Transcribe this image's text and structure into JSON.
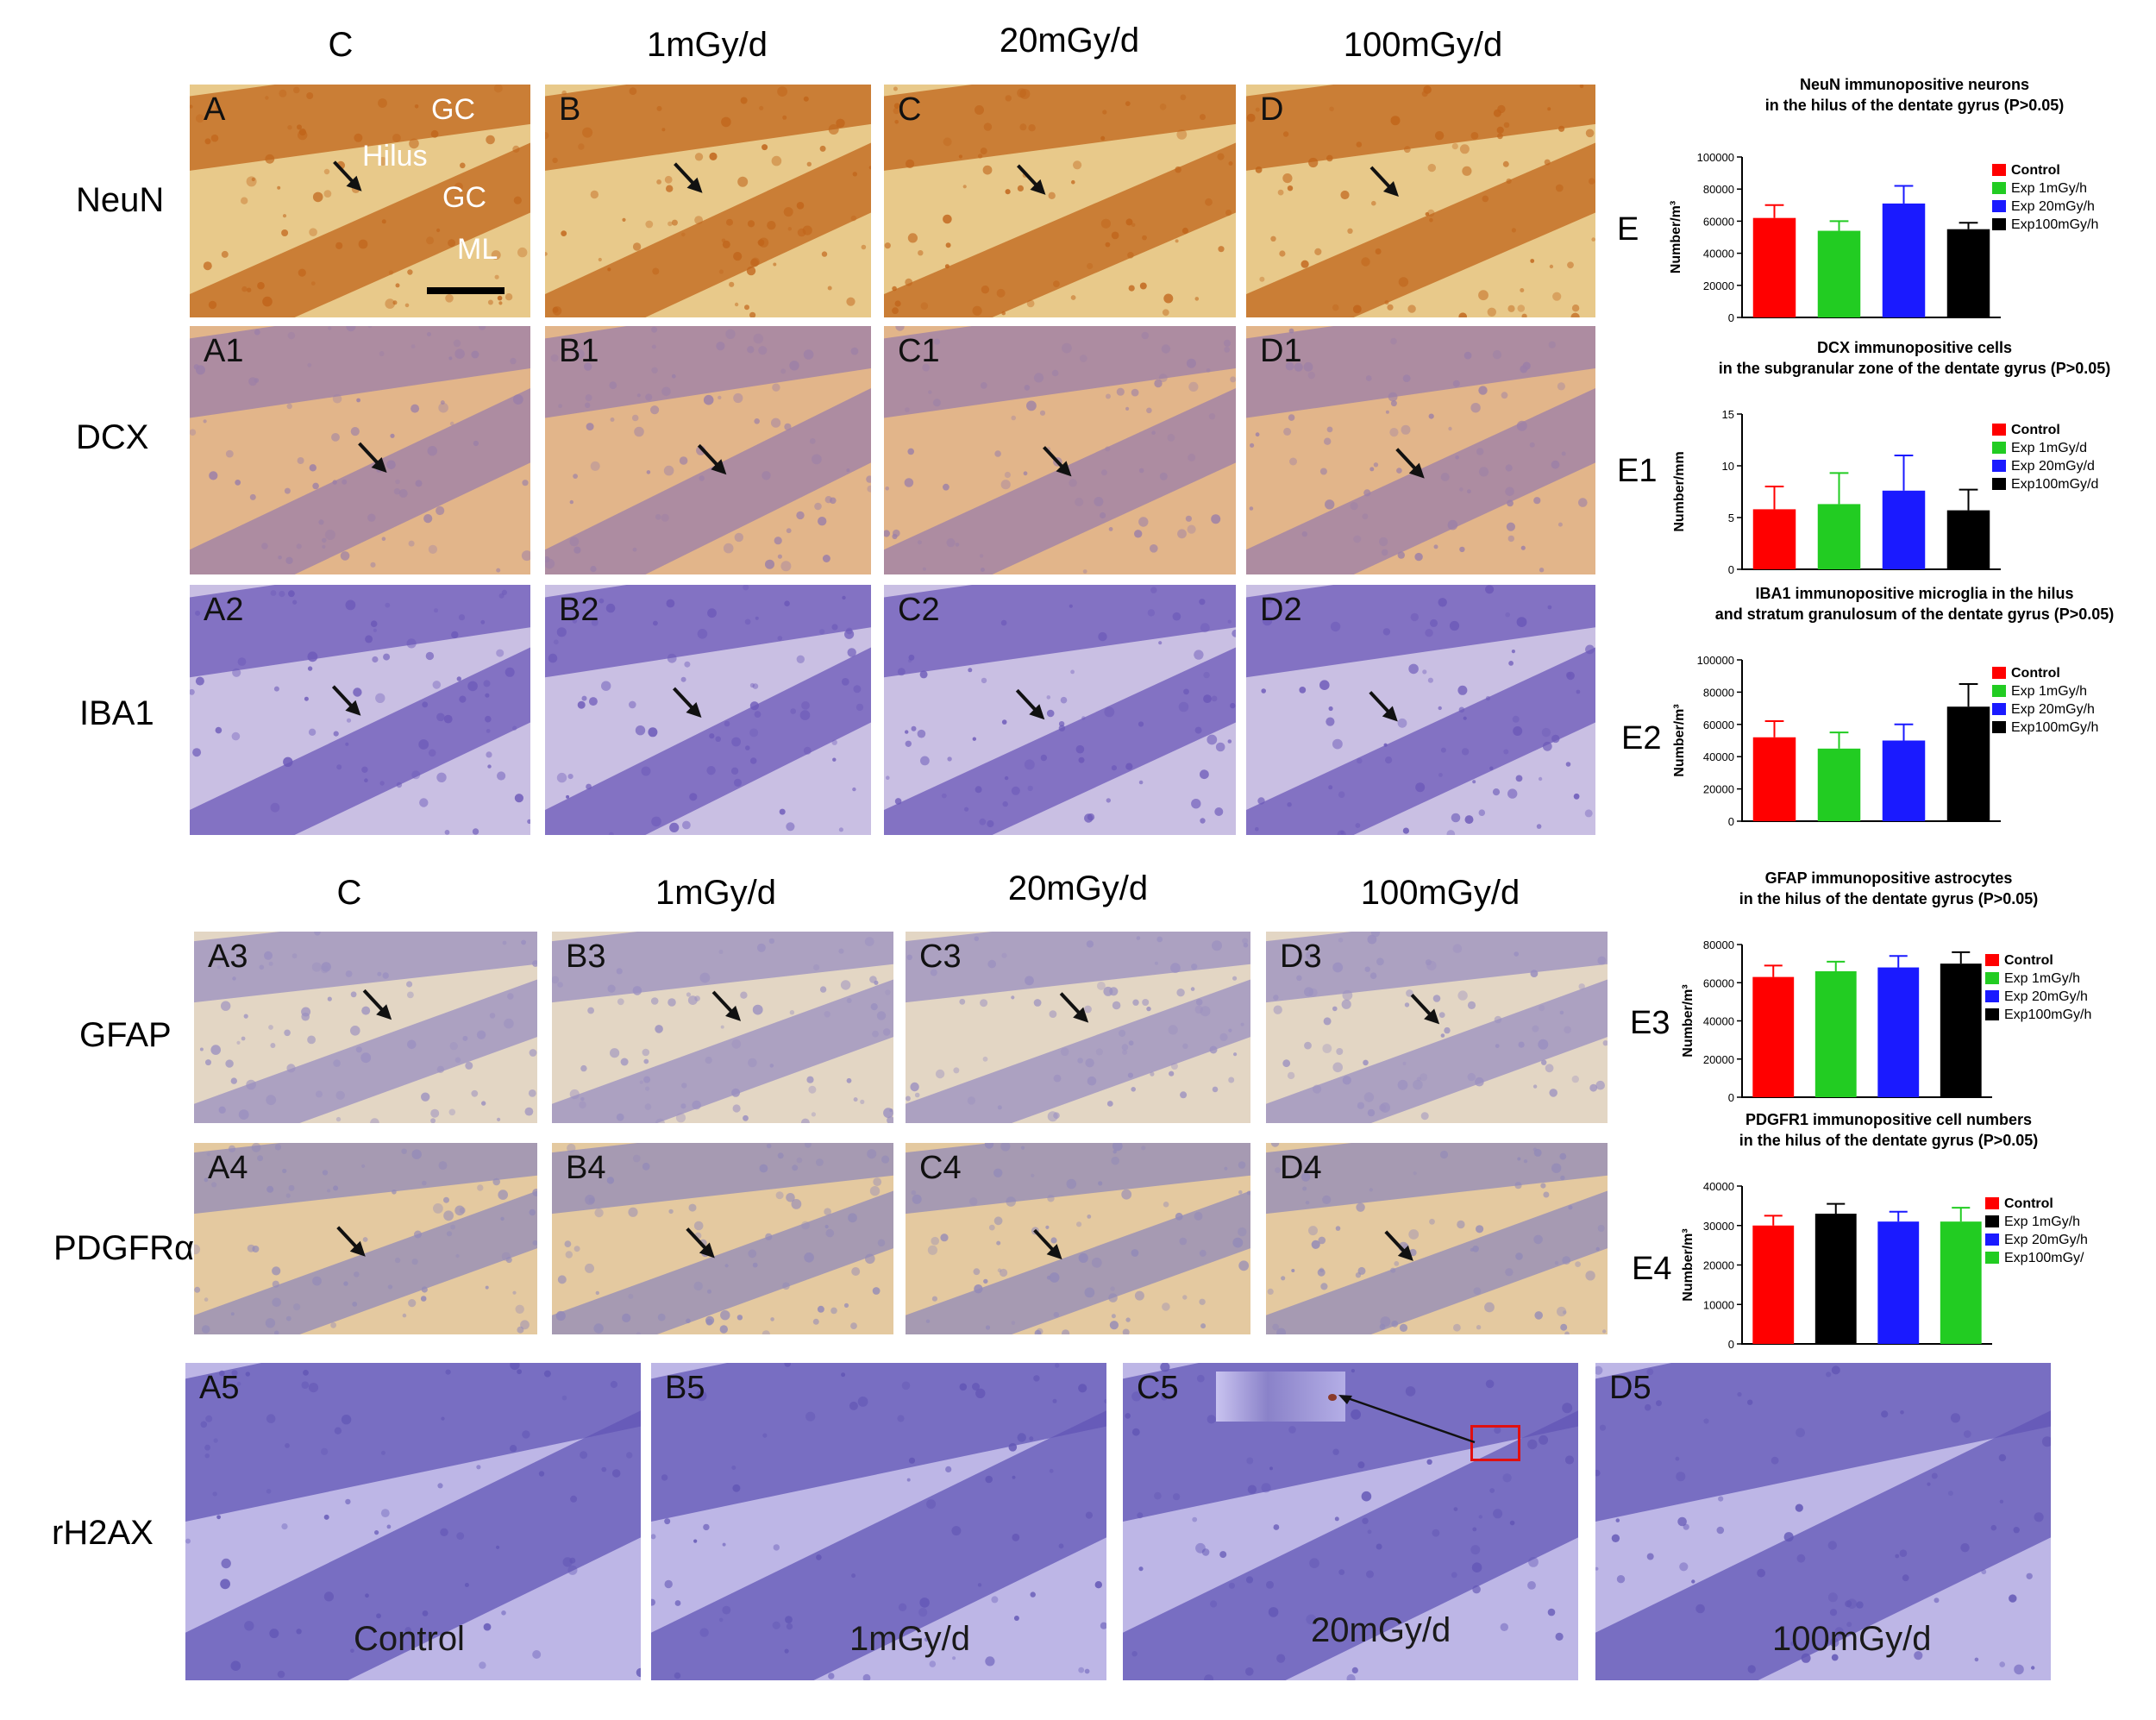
{
  "colors": {
    "neun_bg": "#e8c98a",
    "neun_cells": "#c0641a",
    "dcx_bg": "#e2b58a",
    "dcx_cells": "#9b7fa8",
    "iba1_bg": "#c9bfe3",
    "iba1_cells": "#6b58b8",
    "gfap_bg": "#e3d6c4",
    "gfap_cells": "#9a8fc0",
    "pdgfr_bg": "#e4c9a0",
    "pdgfr_cells": "#9289b8",
    "rh2ax_bg": "#bdb6e6",
    "rh2ax_cells": "#6256b5",
    "red": "#ff0000",
    "green": "#22cc22",
    "blue": "#1a1aff",
    "black": "#000000"
  },
  "top_headers": [
    "C",
    "1mGy/d",
    "20mGy/d",
    "100mGy/d"
  ],
  "mid_headers": [
    "C",
    "1mGy/d",
    "20mGy/d",
    "100mGy/d"
  ],
  "row_labels": {
    "neun": "NeuN",
    "dcx": "DCX",
    "iba1": "IBA1",
    "gfap": "GFAP",
    "pdgfr": "PDGFRα",
    "rh2ax": "rH2AX"
  },
  "panel_labels": {
    "neun": [
      "A",
      "B",
      "C",
      "D"
    ],
    "dcx": [
      "A1",
      "B1",
      "C1",
      "D1"
    ],
    "iba1": [
      "A2",
      "B2",
      "C2",
      "D2"
    ],
    "gfap": [
      "A3",
      "B3",
      "C3",
      "D3"
    ],
    "pdgfr": [
      "A4",
      "B4",
      "C4",
      "D4"
    ],
    "rh2ax": [
      "A5",
      "B5",
      "C5",
      "D5"
    ]
  },
  "neun_annotations": {
    "gc_top": "GC",
    "hilus": "Hilus",
    "gc_bottom": "GC",
    "ml": "ML"
  },
  "rh2ax_captions": [
    "Control",
    "1mGy/d",
    "20mGy/d",
    "100mGy/d"
  ],
  "chart_data": [
    {
      "id": "E",
      "type": "bar",
      "title": "NeuN immunopositive neurons\nin the hilus of the dentate gyrus  (P>0.05)",
      "ylabel": "Number/m³",
      "ylim": [
        0,
        100000
      ],
      "yticks": [
        0,
        20000,
        40000,
        60000,
        80000,
        100000
      ],
      "series": [
        {
          "name": "Control",
          "color": "#ff0000",
          "value": 62000,
          "err": 8000
        },
        {
          "name": "Exp 1mGy/h",
          "color": "#22cc22",
          "value": 54000,
          "err": 6000
        },
        {
          "name": "Exp 20mGy/h",
          "color": "#1a1aff",
          "value": 71000,
          "err": 11000
        },
        {
          "name": "Exp100mGy/h",
          "color": "#000000",
          "value": 55000,
          "err": 4000
        }
      ]
    },
    {
      "id": "E1",
      "type": "bar",
      "title": "DCX immunopositive cells\nin the subgranular zone of the dentate gyrus (P>0.05)",
      "ylabel": "Number/mm",
      "ylim": [
        0,
        15
      ],
      "yticks": [
        0,
        5,
        10,
        15
      ],
      "series": [
        {
          "name": "Control",
          "color": "#ff0000",
          "value": 5.8,
          "err": 2.2
        },
        {
          "name": "Exp 1mGy/d",
          "color": "#22cc22",
          "value": 6.3,
          "err": 3.0
        },
        {
          "name": "Exp 20mGy/d",
          "color": "#1a1aff",
          "value": 7.6,
          "err": 3.4
        },
        {
          "name": "Exp100mGy/d",
          "color": "#000000",
          "value": 5.7,
          "err": 2.0
        }
      ]
    },
    {
      "id": "E2",
      "type": "bar",
      "title": "IBA1 immunopositive microglia in the hilus\nand stratum granulosum of the  dentate gyrus (P>0.05)",
      "ylabel": "Number/m³",
      "ylim": [
        0,
        100000
      ],
      "yticks": [
        0,
        20000,
        40000,
        60000,
        80000,
        100000
      ],
      "series": [
        {
          "name": "Control",
          "color": "#ff0000",
          "value": 52000,
          "err": 10000
        },
        {
          "name": "Exp 1mGy/h",
          "color": "#22cc22",
          "value": 45000,
          "err": 10000
        },
        {
          "name": "Exp 20mGy/h",
          "color": "#1a1aff",
          "value": 50000,
          "err": 10000
        },
        {
          "name": "Exp100mGy/h",
          "color": "#000000",
          "value": 71000,
          "err": 14000
        }
      ]
    },
    {
      "id": "E3",
      "type": "bar",
      "title": "GFAP immunopositive astrocytes\nin the hilus of the dentate gyrus (P>0.05)",
      "ylabel": "Number/m³",
      "ylim": [
        0,
        80000
      ],
      "yticks": [
        0,
        20000,
        40000,
        60000,
        80000
      ],
      "series": [
        {
          "name": "Control",
          "color": "#ff0000",
          "value": 63000,
          "err": 6000
        },
        {
          "name": "Exp  1mGy/h",
          "color": "#22cc22",
          "value": 66000,
          "err": 5000
        },
        {
          "name": "Exp 20mGy/h",
          "color": "#1a1aff",
          "value": 68000,
          "err": 6000
        },
        {
          "name": "Exp100mGy/h",
          "color": "#000000",
          "value": 70000,
          "err": 6000
        }
      ]
    },
    {
      "id": "E4",
      "type": "bar",
      "title": "PDGFR1 immunopositive cell numbers\nin the hilus of the dentate gyrus (P>0.05)",
      "ylabel": "Number/m³",
      "ylim": [
        0,
        40000
      ],
      "yticks": [
        0,
        10000,
        20000,
        30000,
        40000
      ],
      "series": [
        {
          "name": "Control",
          "color": "#ff0000",
          "value": 30000,
          "err": 2500
        },
        {
          "name": "Exp 1mGy/h",
          "color": "#000000",
          "value": 33000,
          "err": 2500
        },
        {
          "name": "Exp 20mGy/h",
          "color": "#1a1aff",
          "value": 31000,
          "err": 2500
        },
        {
          "name": "Exp100mGy/",
          "color": "#22cc22",
          "value": 31000,
          "err": 3500
        }
      ]
    }
  ]
}
